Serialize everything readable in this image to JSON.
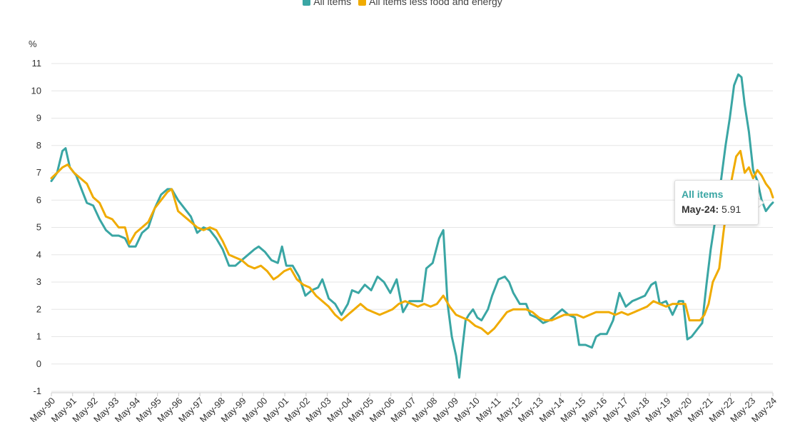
{
  "chart_data": {
    "type": "line",
    "title": "",
    "ylabel": "%",
    "xlabel": "",
    "ylim": [
      -1,
      11
    ],
    "yticks": [
      "-1",
      "0",
      "1",
      "2",
      "3",
      "4",
      "5",
      "6",
      "7",
      "8",
      "9",
      "10",
      "11"
    ],
    "xticks": [
      "May-90",
      "May-91",
      "May-92",
      "May-93",
      "May-94",
      "May-95",
      "May-96",
      "May-97",
      "May-98",
      "May-99",
      "May-00",
      "May-01",
      "May-02",
      "May-03",
      "May-04",
      "May-05",
      "May-06",
      "May-07",
      "May-08",
      "May-09",
      "May-10",
      "May-11",
      "May-12",
      "May-13",
      "May-14",
      "May-15",
      "May-16",
      "May-17",
      "May-18",
      "May-19",
      "May-20",
      "May-21",
      "May-22",
      "May-23",
      "May-24"
    ],
    "x_start_year": 1990.33,
    "x_end_year": 2024.33,
    "legend_position": "top-center",
    "series": [
      {
        "name": "All items",
        "color": "#3aa6a4",
        "points": [
          [
            1990.33,
            6.7
          ],
          [
            1990.6,
            7.0
          ],
          [
            1990.85,
            7.8
          ],
          [
            1991.0,
            7.9
          ],
          [
            1991.2,
            7.2
          ],
          [
            1991.5,
            6.9
          ],
          [
            1991.8,
            6.3
          ],
          [
            1992.0,
            5.9
          ],
          [
            1992.3,
            5.8
          ],
          [
            1992.6,
            5.3
          ],
          [
            1992.9,
            4.9
          ],
          [
            1993.2,
            4.7
          ],
          [
            1993.5,
            4.7
          ],
          [
            1993.8,
            4.6
          ],
          [
            1994.0,
            4.3
          ],
          [
            1994.3,
            4.3
          ],
          [
            1994.6,
            4.8
          ],
          [
            1994.9,
            5.0
          ],
          [
            1995.2,
            5.7
          ],
          [
            1995.5,
            6.2
          ],
          [
            1995.8,
            6.4
          ],
          [
            1996.0,
            6.4
          ],
          [
            1996.3,
            6.0
          ],
          [
            1996.6,
            5.7
          ],
          [
            1996.9,
            5.4
          ],
          [
            1997.2,
            4.8
          ],
          [
            1997.5,
            5.0
          ],
          [
            1997.8,
            4.9
          ],
          [
            1998.1,
            4.6
          ],
          [
            1998.4,
            4.2
          ],
          [
            1998.7,
            3.6
          ],
          [
            1999.0,
            3.6
          ],
          [
            1999.3,
            3.8
          ],
          [
            1999.6,
            4.0
          ],
          [
            1999.9,
            4.2
          ],
          [
            2000.1,
            4.3
          ],
          [
            2000.4,
            4.1
          ],
          [
            2000.7,
            3.8
          ],
          [
            2001.0,
            3.7
          ],
          [
            2001.2,
            4.3
          ],
          [
            2001.4,
            3.6
          ],
          [
            2001.7,
            3.6
          ],
          [
            2002.0,
            3.2
          ],
          [
            2002.3,
            2.5
          ],
          [
            2002.6,
            2.7
          ],
          [
            2002.9,
            2.8
          ],
          [
            2003.1,
            3.1
          ],
          [
            2003.4,
            2.4
          ],
          [
            2003.7,
            2.2
          ],
          [
            2004.0,
            1.8
          ],
          [
            2004.3,
            2.2
          ],
          [
            2004.5,
            2.7
          ],
          [
            2004.8,
            2.6
          ],
          [
            2005.1,
            2.9
          ],
          [
            2005.4,
            2.7
          ],
          [
            2005.7,
            3.2
          ],
          [
            2006.0,
            3.0
          ],
          [
            2006.3,
            2.6
          ],
          [
            2006.6,
            3.1
          ],
          [
            2006.9,
            1.9
          ],
          [
            2007.2,
            2.3
          ],
          [
            2007.5,
            2.3
          ],
          [
            2007.8,
            2.3
          ],
          [
            2008.0,
            3.5
          ],
          [
            2008.3,
            3.7
          ],
          [
            2008.6,
            4.6
          ],
          [
            2008.8,
            4.9
          ],
          [
            2009.0,
            2.2
          ],
          [
            2009.2,
            1.0
          ],
          [
            2009.4,
            0.3
          ],
          [
            2009.55,
            -0.5
          ],
          [
            2009.7,
            0.6
          ],
          [
            2009.85,
            1.6
          ],
          [
            2010.0,
            1.8
          ],
          [
            2010.2,
            2.0
          ],
          [
            2010.4,
            1.7
          ],
          [
            2010.6,
            1.6
          ],
          [
            2010.9,
            2.0
          ],
          [
            2011.1,
            2.5
          ],
          [
            2011.4,
            3.1
          ],
          [
            2011.7,
            3.2
          ],
          [
            2011.9,
            3.0
          ],
          [
            2012.1,
            2.6
          ],
          [
            2012.4,
            2.2
          ],
          [
            2012.7,
            2.2
          ],
          [
            2012.9,
            1.8
          ],
          [
            2013.2,
            1.7
          ],
          [
            2013.5,
            1.5
          ],
          [
            2013.8,
            1.6
          ],
          [
            2014.1,
            1.8
          ],
          [
            2014.4,
            2.0
          ],
          [
            2014.7,
            1.8
          ],
          [
            2015.0,
            1.7
          ],
          [
            2015.2,
            0.7
          ],
          [
            2015.5,
            0.7
          ],
          [
            2015.8,
            0.6
          ],
          [
            2016.0,
            1.0
          ],
          [
            2016.2,
            1.1
          ],
          [
            2016.5,
            1.1
          ],
          [
            2016.8,
            1.6
          ],
          [
            2017.1,
            2.6
          ],
          [
            2017.4,
            2.1
          ],
          [
            2017.7,
            2.3
          ],
          [
            2018.0,
            2.4
          ],
          [
            2018.3,
            2.5
          ],
          [
            2018.6,
            2.9
          ],
          [
            2018.8,
            3.0
          ],
          [
            2019.0,
            2.2
          ],
          [
            2019.3,
            2.3
          ],
          [
            2019.6,
            1.8
          ],
          [
            2019.9,
            2.3
          ],
          [
            2020.1,
            2.3
          ],
          [
            2020.3,
            0.9
          ],
          [
            2020.5,
            1.0
          ],
          [
            2020.8,
            1.3
          ],
          [
            2021.0,
            1.5
          ],
          [
            2021.2,
            2.9
          ],
          [
            2021.4,
            4.2
          ],
          [
            2021.6,
            5.2
          ],
          [
            2021.9,
            6.8
          ],
          [
            2022.1,
            8.0
          ],
          [
            2022.3,
            9.0
          ],
          [
            2022.5,
            10.2
          ],
          [
            2022.7,
            10.6
          ],
          [
            2022.85,
            10.5
          ],
          [
            2023.0,
            9.5
          ],
          [
            2023.2,
            8.5
          ],
          [
            2023.4,
            7.1
          ],
          [
            2023.6,
            6.7
          ],
          [
            2023.8,
            6.0
          ],
          [
            2024.0,
            5.6
          ],
          [
            2024.2,
            5.8
          ],
          [
            2024.33,
            5.91
          ]
        ]
      },
      {
        "name": "All items less food and energy",
        "color": "#f0ab00",
        "points": [
          [
            1990.33,
            6.8
          ],
          [
            1990.6,
            7.0
          ],
          [
            1990.85,
            7.2
          ],
          [
            1991.1,
            7.3
          ],
          [
            1991.4,
            7.0
          ],
          [
            1991.7,
            6.8
          ],
          [
            1992.0,
            6.6
          ],
          [
            1992.3,
            6.1
          ],
          [
            1992.6,
            5.9
          ],
          [
            1992.9,
            5.4
          ],
          [
            1993.2,
            5.3
          ],
          [
            1993.5,
            5.0
          ],
          [
            1993.8,
            5.0
          ],
          [
            1994.0,
            4.4
          ],
          [
            1994.3,
            4.8
          ],
          [
            1994.6,
            5.0
          ],
          [
            1994.9,
            5.2
          ],
          [
            1995.2,
            5.7
          ],
          [
            1995.5,
            6.0
          ],
          [
            1995.8,
            6.3
          ],
          [
            1996.0,
            6.4
          ],
          [
            1996.3,
            5.6
          ],
          [
            1996.6,
            5.4
          ],
          [
            1996.9,
            5.2
          ],
          [
            1997.2,
            5.0
          ],
          [
            1997.5,
            4.9
          ],
          [
            1997.8,
            5.0
          ],
          [
            1998.1,
            4.9
          ],
          [
            1998.4,
            4.5
          ],
          [
            1998.7,
            4.0
          ],
          [
            1999.0,
            3.9
          ],
          [
            1999.3,
            3.8
          ],
          [
            1999.6,
            3.6
          ],
          [
            1999.9,
            3.5
          ],
          [
            2000.2,
            3.6
          ],
          [
            2000.5,
            3.4
          ],
          [
            2000.8,
            3.1
          ],
          [
            2001.0,
            3.2
          ],
          [
            2001.3,
            3.4
          ],
          [
            2001.6,
            3.5
          ],
          [
            2001.9,
            3.1
          ],
          [
            2002.2,
            2.9
          ],
          [
            2002.5,
            2.8
          ],
          [
            2002.8,
            2.5
          ],
          [
            2003.1,
            2.3
          ],
          [
            2003.4,
            2.1
          ],
          [
            2003.7,
            1.8
          ],
          [
            2004.0,
            1.6
          ],
          [
            2004.3,
            1.8
          ],
          [
            2004.6,
            2.0
          ],
          [
            2004.9,
            2.2
          ],
          [
            2005.2,
            2.0
          ],
          [
            2005.5,
            1.9
          ],
          [
            2005.8,
            1.8
          ],
          [
            2006.1,
            1.9
          ],
          [
            2006.4,
            2.0
          ],
          [
            2006.7,
            2.2
          ],
          [
            2007.0,
            2.3
          ],
          [
            2007.3,
            2.2
          ],
          [
            2007.6,
            2.1
          ],
          [
            2007.9,
            2.2
          ],
          [
            2008.2,
            2.1
          ],
          [
            2008.5,
            2.2
          ],
          [
            2008.8,
            2.5
          ],
          [
            2009.1,
            2.1
          ],
          [
            2009.4,
            1.8
          ],
          [
            2009.7,
            1.7
          ],
          [
            2010.0,
            1.6
          ],
          [
            2010.3,
            1.4
          ],
          [
            2010.6,
            1.3
          ],
          [
            2010.9,
            1.1
          ],
          [
            2011.2,
            1.3
          ],
          [
            2011.5,
            1.6
          ],
          [
            2011.8,
            1.9
          ],
          [
            2012.1,
            2.0
          ],
          [
            2012.4,
            2.0
          ],
          [
            2012.7,
            2.0
          ],
          [
            2013.0,
            1.9
          ],
          [
            2013.3,
            1.7
          ],
          [
            2013.6,
            1.6
          ],
          [
            2013.9,
            1.6
          ],
          [
            2014.2,
            1.7
          ],
          [
            2014.5,
            1.8
          ],
          [
            2014.8,
            1.8
          ],
          [
            2015.1,
            1.8
          ],
          [
            2015.4,
            1.7
          ],
          [
            2015.7,
            1.8
          ],
          [
            2016.0,
            1.9
          ],
          [
            2016.3,
            1.9
          ],
          [
            2016.6,
            1.9
          ],
          [
            2016.9,
            1.8
          ],
          [
            2017.2,
            1.9
          ],
          [
            2017.5,
            1.8
          ],
          [
            2017.8,
            1.9
          ],
          [
            2018.1,
            2.0
          ],
          [
            2018.4,
            2.1
          ],
          [
            2018.7,
            2.3
          ],
          [
            2019.0,
            2.2
          ],
          [
            2019.3,
            2.1
          ],
          [
            2019.6,
            2.2
          ],
          [
            2019.9,
            2.2
          ],
          [
            2020.2,
            2.2
          ],
          [
            2020.4,
            1.6
          ],
          [
            2020.7,
            1.6
          ],
          [
            2020.9,
            1.6
          ],
          [
            2021.1,
            1.8
          ],
          [
            2021.3,
            2.2
          ],
          [
            2021.5,
            3.0
          ],
          [
            2021.8,
            3.5
          ],
          [
            2022.0,
            4.8
          ],
          [
            2022.2,
            6.0
          ],
          [
            2022.4,
            6.8
          ],
          [
            2022.6,
            7.6
          ],
          [
            2022.8,
            7.8
          ],
          [
            2023.0,
            7.0
          ],
          [
            2023.2,
            7.2
          ],
          [
            2023.4,
            6.8
          ],
          [
            2023.6,
            7.1
          ],
          [
            2023.8,
            6.9
          ],
          [
            2024.0,
            6.6
          ],
          [
            2024.2,
            6.4
          ],
          [
            2024.33,
            6.1
          ]
        ]
      }
    ],
    "tooltip": {
      "series": "All items",
      "label": "May-24:",
      "value": "5.91"
    }
  }
}
